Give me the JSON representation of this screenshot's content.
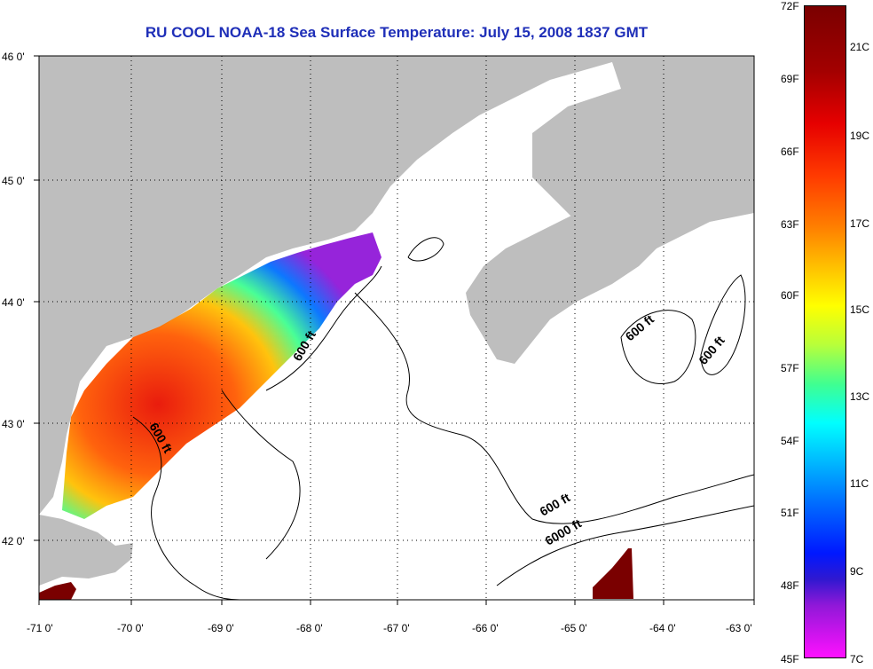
{
  "title": "RU COOL  NOAA-18  Sea Surface Temperature:  July 15, 2008 1837 GMT",
  "map": {
    "lon_min": -71,
    "lon_max": -63,
    "lat_min": 41.5,
    "lat_max": 46,
    "lon_ticks": [
      "-71 0'",
      "-70 0'",
      "-69 0'",
      "-68 0'",
      "-67 0'",
      "-66 0'",
      "-65 0'",
      "-64 0'",
      "-63 0'"
    ],
    "lat_ticks": [
      "46 0'",
      "45 0'",
      "44 0'",
      "43 0'",
      "42 0'"
    ],
    "grid": "dotted",
    "contour_labels": [
      "600 ft",
      "600 ft",
      "600 ft",
      "600 ft",
      "600 ft",
      "6000 ft"
    ],
    "land_color": "#bebebe",
    "sea_color": "#ffffff"
  },
  "colorbar": {
    "fahrenheit": [
      "72F",
      "69F",
      "66F",
      "63F",
      "60F",
      "57F",
      "54F",
      "51F",
      "48F",
      "45F"
    ],
    "celsius": [
      "21C",
      "19C",
      "17C",
      "15C",
      "13C",
      "11C",
      "9C",
      "7C"
    ],
    "top_color": "#7a0000",
    "bottom_color": "#ff10ff"
  }
}
